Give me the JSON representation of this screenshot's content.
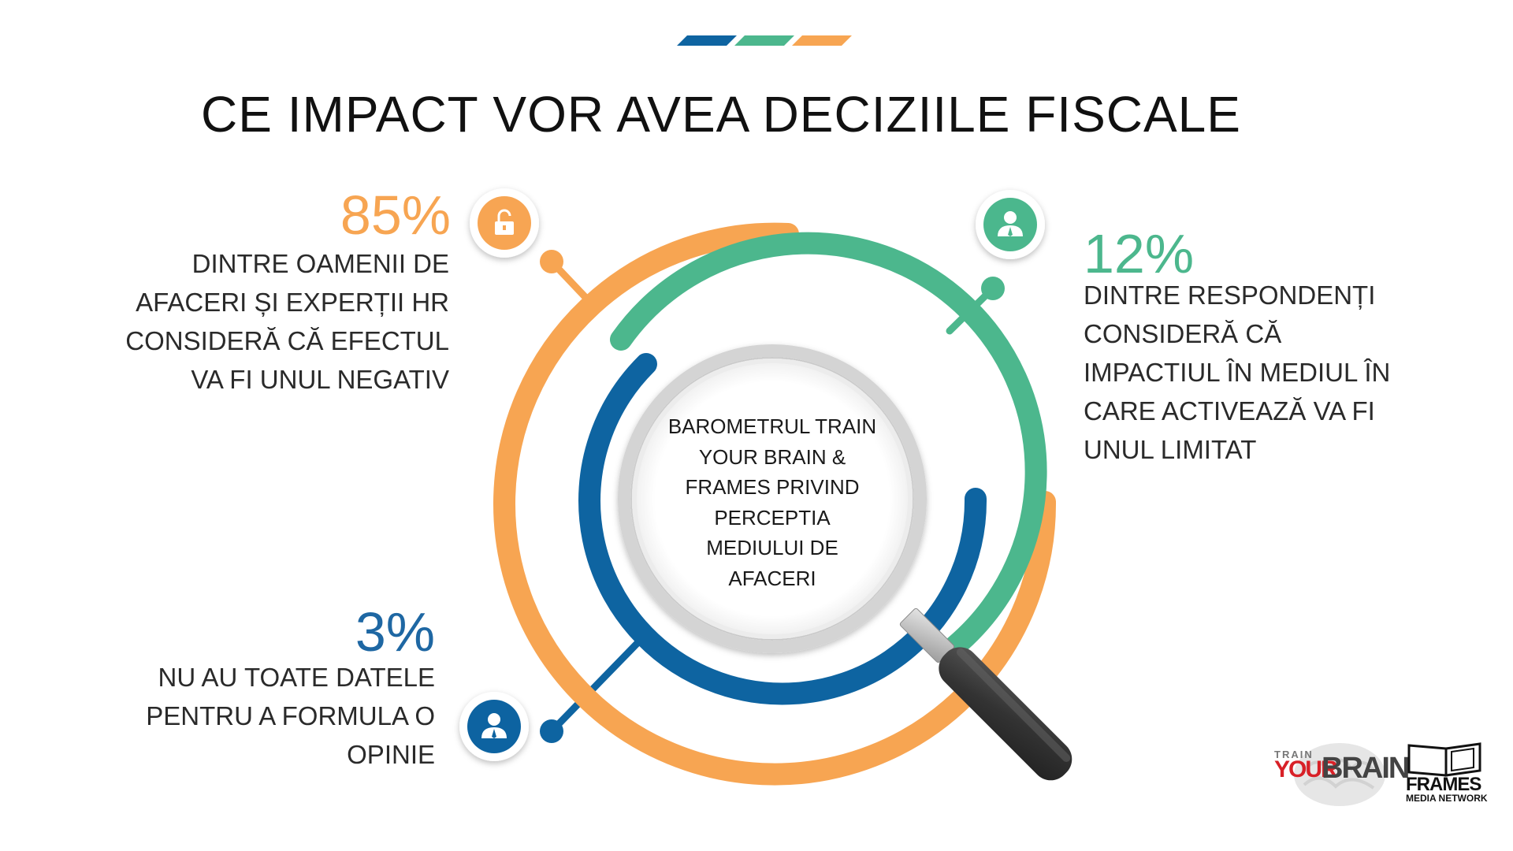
{
  "title": "CE IMPACT VOR AVEA DECIZIILE FISCALE",
  "colors": {
    "orange": "#f7a552",
    "green": "#4cb78d",
    "blue": "#1e67a3",
    "dark_blue_ring": "#0e64a1"
  },
  "stats": [
    {
      "id": "negative",
      "percent": "85%",
      "text": "DINTRE OAMENII DE AFACERI ȘI EXPERȚII HR CONSIDERĂ CĂ EFECTUL VA FI UNUL NEGATIV",
      "icon": "padlock-icon",
      "color": "#f7a552"
    },
    {
      "id": "limited",
      "percent": "12%",
      "text": "DINTRE RESPONDENȚI CONSIDERĂ CĂ IMPACTIUL ÎN MEDIUL ÎN CARE ACTIVEAZĂ VA FI UNUL LIMITAT",
      "icon": "person-icon",
      "color": "#4cb78d"
    },
    {
      "id": "no-opinion",
      "percent": "3%",
      "text": "NU AU TOATE DATELE PENTRU A FORMULA O OPINIE",
      "icon": "person-icon",
      "color": "#1e67a3"
    }
  ],
  "center": {
    "text": "BAROMETRUL TRAIN YOUR BRAIN & FRAMES PRIVIND PERCEPTIA MEDIULUI DE AFACERI"
  },
  "logos": {
    "train_your_brain": {
      "train": "TRAIN",
      "your": "YOUR",
      "brain": "BRAIN"
    },
    "frames": {
      "name": "FRAMES",
      "sub": "MEDIA NETWORK"
    }
  }
}
